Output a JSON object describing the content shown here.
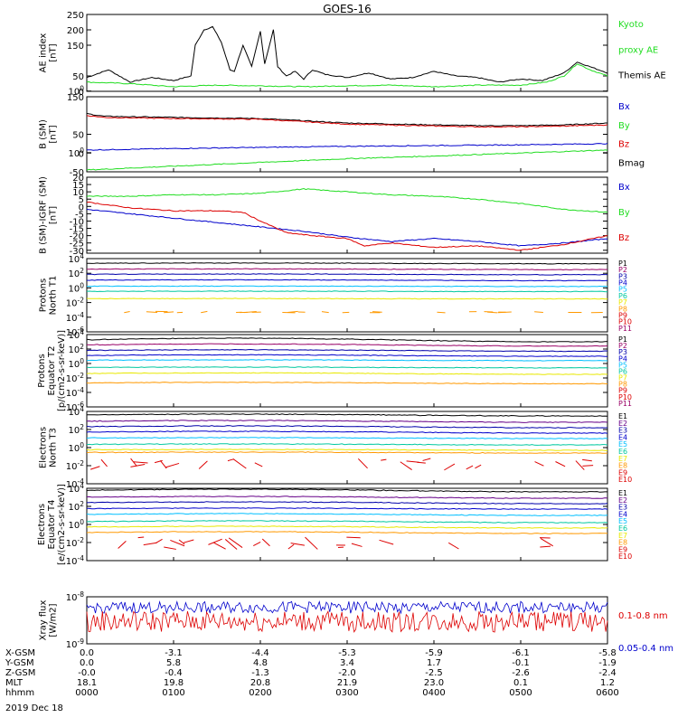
{
  "title": "GOES-16",
  "date_label": "2019 Dec 18",
  "colors": {
    "black": "#000000",
    "green": "#22dd22",
    "blue": "#0000cc",
    "red": "#dd0000",
    "cyan": "#00bfff",
    "teal": "#00c8a0",
    "yellow": "#e8e800",
    "orange": "#ff9900",
    "purple": "#660088",
    "navy": "#0000aa",
    "magenta": "#990066"
  },
  "footer": {
    "rows": [
      {
        "label": "X-GSM",
        "values": [
          "0.0",
          "-3.1",
          "-4.4",
          "-5.3",
          "-5.9",
          "-6.1",
          "-5.8"
        ]
      },
      {
        "label": "Y-GSM",
        "values": [
          "0.0",
          "5.8",
          "4.8",
          "3.4",
          "1.7",
          "-0.1",
          "-1.9"
        ]
      },
      {
        "label": "Z-GSM",
        "values": [
          "-0.0",
          "-0.4",
          "-1.3",
          "-2.0",
          "-2.5",
          "-2.6",
          "-2.4"
        ]
      },
      {
        "label": "MLT",
        "values": [
          "18.1",
          "19.8",
          "20.8",
          "21.9",
          "23.0",
          "0.1",
          "1.2"
        ]
      },
      {
        "label": "hhmm",
        "values": [
          "0000",
          "0100",
          "0200",
          "0300",
          "0400",
          "0500",
          "0600"
        ]
      }
    ]
  },
  "chart_data": [
    {
      "type": "line",
      "panel": "ae",
      "ylabel": [
        "AE index",
        "[nT]"
      ],
      "ylim": [
        0,
        250
      ],
      "yticks": [
        "0",
        "50",
        "100",
        "150",
        "200",
        "250"
      ],
      "legend": [
        {
          "text": "Kyoto",
          "color": "green"
        },
        {
          "text": "proxy AE",
          "color": "green"
        },
        {
          "text": "Themis AE",
          "color": "black"
        }
      ],
      "series": [
        {
          "name": "Themis AE",
          "color": "black",
          "x": [
            0,
            0.25,
            0.5,
            0.75,
            1.0,
            1.2,
            1.25,
            1.35,
            1.45,
            1.55,
            1.65,
            1.7,
            1.8,
            1.9,
            2.0,
            2.05,
            2.15,
            2.2,
            2.3,
            2.4,
            2.5,
            2.6,
            2.75,
            3.0,
            3.25,
            3.5,
            3.75,
            4.0,
            4.25,
            4.5,
            4.75,
            5.0,
            5.25,
            5.5,
            5.65,
            5.8,
            6.0
          ],
          "y": [
            45,
            70,
            30,
            45,
            35,
            50,
            150,
            200,
            210,
            160,
            70,
            65,
            150,
            80,
            195,
            90,
            200,
            80,
            50,
            65,
            40,
            70,
            55,
            45,
            60,
            40,
            45,
            65,
            50,
            45,
            30,
            40,
            35,
            60,
            95,
            80,
            60
          ]
        },
        {
          "name": "Kyoto proxy AE",
          "color": "green",
          "x": [
            0,
            0.5,
            1.0,
            1.5,
            2.0,
            2.5,
            3.0,
            3.5,
            4.0,
            4.5,
            5.0,
            5.3,
            5.5,
            5.65,
            5.8,
            6.0
          ],
          "y": [
            30,
            25,
            15,
            20,
            18,
            15,
            18,
            20,
            15,
            20,
            20,
            30,
            50,
            90,
            70,
            50
          ]
        }
      ]
    },
    {
      "type": "line",
      "panel": "bsm",
      "ylabel": [
        "B (SM)",
        "[nT]"
      ],
      "ylim": [
        -50,
        150
      ],
      "yticks": [
        "-50",
        "0",
        "50",
        "100",
        "150"
      ],
      "legend": [
        {
          "text": "Bx",
          "color": "blue"
        },
        {
          "text": "By",
          "color": "green"
        },
        {
          "text": "Bz",
          "color": "red"
        },
        {
          "text": "Bmag",
          "color": "black"
        }
      ],
      "series": [
        {
          "name": "Bmag",
          "color": "black",
          "x": [
            0,
            0.2,
            1.0,
            2.0,
            3.0,
            4.0,
            4.5,
            5.0,
            5.5,
            6.0
          ],
          "y": [
            105,
            98,
            95,
            92,
            80,
            75,
            73,
            73,
            75,
            80
          ]
        },
        {
          "name": "Bz",
          "color": "red",
          "x": [
            0,
            0.2,
            1.0,
            2.0,
            3.0,
            4.0,
            4.5,
            5.0,
            5.5,
            6.0
          ],
          "y": [
            100,
            95,
            92,
            90,
            77,
            72,
            70,
            70,
            72,
            75
          ]
        },
        {
          "name": "Bx",
          "color": "blue",
          "x": [
            0,
            1.0,
            2.0,
            3.0,
            4.0,
            5.0,
            6.0
          ],
          "y": [
            8,
            12,
            15,
            18,
            20,
            22,
            25
          ]
        },
        {
          "name": "By",
          "color": "green",
          "x": [
            0,
            1.0,
            2.0,
            3.0,
            4.0,
            5.0,
            6.0
          ],
          "y": [
            -45,
            -35,
            -25,
            -15,
            -8,
            0,
            8
          ]
        }
      ]
    },
    {
      "type": "line",
      "panel": "dbsm",
      "ylabel": [
        "B (SM)-IGRF (SM)",
        "[nT]"
      ],
      "ylim": [
        -32,
        20
      ],
      "yticks": [
        "-30",
        "-25",
        "-20",
        "-15",
        "-10",
        "-5",
        "0",
        "5",
        "10",
        "15",
        "20"
      ],
      "legend": [
        {
          "text": "Bx",
          "color": "blue"
        },
        {
          "text": "By",
          "color": "green"
        },
        {
          "text": "Bz",
          "color": "red"
        }
      ],
      "series": [
        {
          "name": "By",
          "color": "green",
          "x": [
            0,
            0.5,
            1.0,
            1.5,
            2.0,
            2.5,
            3.0,
            3.5,
            4.0,
            4.5,
            5.0,
            5.5,
            6.0
          ],
          "y": [
            7,
            7,
            8,
            8,
            9,
            12,
            10,
            8,
            7,
            5,
            2,
            -2,
            -4
          ]
        },
        {
          "name": "Bx",
          "color": "blue",
          "x": [
            0,
            0.5,
            1.0,
            1.5,
            2.0,
            2.5,
            3.0,
            3.5,
            4.0,
            4.5,
            5.0,
            5.5,
            6.0
          ],
          "y": [
            -2,
            -5,
            -8,
            -11,
            -14,
            -17,
            -21,
            -24,
            -22,
            -24,
            -27,
            -25,
            -22
          ]
        },
        {
          "name": "Bz",
          "color": "red",
          "x": [
            0,
            0.5,
            1.0,
            1.5,
            1.8,
            2.0,
            2.3,
            2.6,
            3.0,
            3.2,
            3.5,
            4.0,
            4.5,
            5.0,
            5.5,
            6.0
          ],
          "y": [
            3,
            -1,
            -3,
            -3,
            -4,
            -10,
            -18,
            -20,
            -22,
            -27,
            -25,
            -28,
            -27,
            -30,
            -26,
            -20
          ]
        }
      ]
    },
    {
      "type": "line",
      "panel": "pn",
      "ylabel": [
        "Protons",
        "North T1"
      ],
      "ylog": true,
      "ylim": [
        1e-06,
        10000.0
      ],
      "yticks": [
        "10-6",
        "10-4",
        "10-2",
        "100",
        "102",
        "104"
      ],
      "legend": [
        {
          "text": "P1",
          "color": "black"
        },
        {
          "text": "P2",
          "color": "magenta"
        },
        {
          "text": "P3",
          "color": "navy"
        },
        {
          "text": "P4",
          "color": "blue"
        },
        {
          "text": "P5",
          "color": "cyan"
        },
        {
          "text": "P6",
          "color": "teal"
        },
        {
          "text": "P7",
          "color": "yellow"
        },
        {
          "text": "P8",
          "color": "orange"
        },
        {
          "text": "P9",
          "color": "red"
        },
        {
          "text": "P10",
          "color": "red"
        },
        {
          "text": "P11",
          "color": "magenta"
        }
      ],
      "series": [
        {
          "name": "P1",
          "color": "black",
          "exp": [
            3.3,
            3.4
          ]
        },
        {
          "name": "P2",
          "color": "magenta",
          "exp": [
            2.5,
            2.6
          ]
        },
        {
          "name": "P3",
          "color": "navy",
          "exp": [
            1.8,
            1.9
          ]
        },
        {
          "name": "P4",
          "color": "blue",
          "exp": [
            1.0,
            1.1
          ]
        },
        {
          "name": "P5",
          "color": "cyan",
          "exp": [
            0.2,
            0.25
          ]
        },
        {
          "name": "P6",
          "color": "teal",
          "exp": [
            -0.5,
            -0.45
          ]
        },
        {
          "name": "P7",
          "color": "yellow",
          "exp": [
            -1.5,
            -1.45
          ]
        },
        {
          "name": "P8",
          "color": "orange",
          "exp": [
            -3.4,
            -3.2
          ],
          "sparse": true
        }
      ]
    },
    {
      "type": "line",
      "panel": "pe",
      "ylabel": [
        "Protons",
        "Equator T2",
        "[p/(cm2-s-sr-keV)]"
      ],
      "ylog": true,
      "ylim": [
        1e-06,
        10000.0
      ],
      "yticks": [
        "10-6",
        "10-4",
        "10-2",
        "100",
        "102",
        "104"
      ],
      "legend": [
        {
          "text": "P1",
          "color": "black"
        },
        {
          "text": "P2",
          "color": "magenta"
        },
        {
          "text": "P3",
          "color": "navy"
        },
        {
          "text": "P4",
          "color": "blue"
        },
        {
          "text": "P5",
          "color": "cyan"
        },
        {
          "text": "P6",
          "color": "teal"
        },
        {
          "text": "P7",
          "color": "yellow"
        },
        {
          "text": "P8",
          "color": "orange"
        },
        {
          "text": "P9",
          "color": "red"
        },
        {
          "text": "P10",
          "color": "red"
        },
        {
          "text": "P11",
          "color": "magenta"
        }
      ],
      "series": [
        {
          "name": "P1",
          "color": "black",
          "exp": [
            3.0,
            3.5
          ]
        },
        {
          "name": "P2",
          "color": "magenta",
          "exp": [
            2.4,
            2.7
          ]
        },
        {
          "name": "P3",
          "color": "navy",
          "exp": [
            1.7,
            1.9
          ]
        },
        {
          "name": "P4",
          "color": "blue",
          "exp": [
            1.0,
            1.2
          ]
        },
        {
          "name": "P5",
          "color": "cyan",
          "exp": [
            0.4,
            0.5
          ]
        },
        {
          "name": "P6",
          "color": "teal",
          "exp": [
            -0.6,
            -0.5
          ]
        },
        {
          "name": "P7",
          "color": "yellow",
          "exp": [
            -1.5,
            -1.3
          ]
        },
        {
          "name": "P8",
          "color": "orange",
          "exp": [
            -2.8,
            -2.6
          ]
        }
      ]
    },
    {
      "type": "line",
      "panel": "en",
      "ylabel": [
        "Electrons",
        "North T3"
      ],
      "ylog": true,
      "ylim": [
        0.0001,
        10000.0
      ],
      "yticks": [
        "10-4",
        "10-2",
        "100",
        "102",
        "104"
      ],
      "legend": [
        {
          "text": "E1",
          "color": "black"
        },
        {
          "text": "E2",
          "color": "purple"
        },
        {
          "text": "E3",
          "color": "navy"
        },
        {
          "text": "E4",
          "color": "blue"
        },
        {
          "text": "E5",
          "color": "cyan"
        },
        {
          "text": "E6",
          "color": "teal"
        },
        {
          "text": "E7",
          "color": "yellow"
        },
        {
          "text": "E8",
          "color": "orange"
        },
        {
          "text": "E9",
          "color": "red"
        },
        {
          "text": "E10",
          "color": "red"
        }
      ],
      "series": [
        {
          "name": "E1",
          "color": "black",
          "exp": [
            3.5,
            3.7
          ]
        },
        {
          "name": "E2",
          "color": "purple",
          "exp": [
            2.8,
            3.0
          ]
        },
        {
          "name": "E3",
          "color": "navy",
          "exp": [
            2.2,
            2.4
          ]
        },
        {
          "name": "E4",
          "color": "blue",
          "exp": [
            1.6,
            1.8
          ]
        },
        {
          "name": "E5",
          "color": "cyan",
          "exp": [
            1.0,
            1.1
          ]
        },
        {
          "name": "E6",
          "color": "teal",
          "exp": [
            0.3,
            0.4
          ]
        },
        {
          "name": "E7",
          "color": "yellow",
          "exp": [
            -0.3,
            -0.2
          ]
        },
        {
          "name": "E8",
          "color": "orange",
          "exp": [
            -0.6,
            -0.5
          ]
        },
        {
          "name": "E9",
          "color": "red",
          "exp": [
            -2.5,
            -1.2
          ],
          "sparse": true
        }
      ]
    },
    {
      "type": "line",
      "panel": "ee",
      "ylabel": [
        "Electrons",
        "Equator T4",
        "[e/(cm2-s-sr-keV)]"
      ],
      "ylog": true,
      "ylim": [
        0.0001,
        10000.0
      ],
      "yticks": [
        "10-4",
        "10-2",
        "100",
        "102",
        "104"
      ],
      "legend": [
        {
          "text": "E1",
          "color": "black"
        },
        {
          "text": "E2",
          "color": "purple"
        },
        {
          "text": "E3",
          "color": "navy"
        },
        {
          "text": "E4",
          "color": "blue"
        },
        {
          "text": "E5",
          "color": "cyan"
        },
        {
          "text": "E6",
          "color": "teal"
        },
        {
          "text": "E7",
          "color": "yellow"
        },
        {
          "text": "E8",
          "color": "orange"
        },
        {
          "text": "E9",
          "color": "red"
        },
        {
          "text": "E10",
          "color": "red"
        }
      ],
      "series": [
        {
          "name": "E1",
          "color": "black",
          "exp": [
            3.6,
            3.9
          ]
        },
        {
          "name": "E2",
          "color": "purple",
          "exp": [
            2.9,
            3.1
          ]
        },
        {
          "name": "E3",
          "color": "navy",
          "exp": [
            2.3,
            2.5
          ]
        },
        {
          "name": "E4",
          "color": "blue",
          "exp": [
            1.7,
            1.8
          ]
        },
        {
          "name": "E5",
          "color": "cyan",
          "exp": [
            1.0,
            1.2
          ]
        },
        {
          "name": "E6",
          "color": "teal",
          "exp": [
            0.2,
            0.4
          ]
        },
        {
          "name": "E7",
          "color": "yellow",
          "exp": [
            -0.4,
            -0.2
          ]
        },
        {
          "name": "E8",
          "color": "orange",
          "exp": [
            -1.0,
            -0.8
          ]
        },
        {
          "name": "E9",
          "color": "red",
          "exp": [
            -2.8,
            -1.4
          ],
          "sparse": true
        }
      ]
    },
    {
      "type": "line",
      "panel": "xray",
      "ylabel": [
        "Xray flux",
        "[W/m2]"
      ],
      "ylog": true,
      "ylim": [
        1e-09,
        1e-08
      ],
      "yticks": [
        "10-9",
        "10-8"
      ],
      "legend": [
        {
          "text": "0.1-0.8 nm",
          "color": "red"
        },
        {
          "text": "0.05-0.4 nm",
          "color": "blue"
        }
      ],
      "series": [
        {
          "name": "0.05-0.4 nm",
          "color": "blue",
          "exp": [
            -8.35,
            -8.1
          ],
          "noisy": true
        },
        {
          "name": "0.1-0.8 nm",
          "color": "red",
          "exp": [
            -8.75,
            -8.3
          ],
          "noisy": true
        }
      ]
    }
  ]
}
